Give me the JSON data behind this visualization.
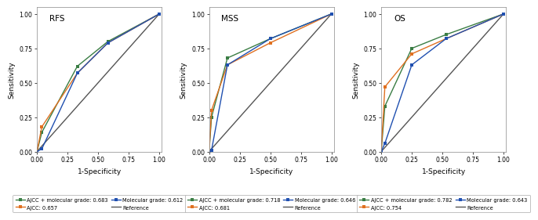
{
  "panels": [
    {
      "title": "RFS",
      "curves": {
        "ajcc_mol": {
          "x": [
            0.0,
            0.04,
            0.33,
            0.58,
            1.0
          ],
          "y": [
            0.0,
            0.14,
            0.62,
            0.8,
            1.0
          ],
          "color": "#3a7d44",
          "label": "AJCC + molecular grade: 0.683"
        },
        "ajcc": {
          "x": [
            0.0,
            0.04,
            0.33,
            0.58,
            1.0
          ],
          "y": [
            0.0,
            0.18,
            0.57,
            0.79,
            1.0
          ],
          "color": "#e07020",
          "label": "AJCC: 0.657"
        },
        "mol": {
          "x": [
            0.0,
            0.04,
            0.33,
            0.58,
            1.0
          ],
          "y": [
            0.0,
            0.02,
            0.57,
            0.79,
            1.0
          ],
          "color": "#2050b0",
          "label": "Molecular grade: 0.612"
        }
      }
    },
    {
      "title": "MSS",
      "curves": {
        "ajcc_mol": {
          "x": [
            0.0,
            0.02,
            0.15,
            0.5,
            1.0
          ],
          "y": [
            0.0,
            0.25,
            0.68,
            0.82,
            1.0
          ],
          "color": "#3a7d44",
          "label": "AJCC + molecular grade: 0.718"
        },
        "ajcc": {
          "x": [
            0.0,
            0.02,
            0.15,
            0.5,
            1.0
          ],
          "y": [
            0.0,
            0.3,
            0.63,
            0.79,
            1.0
          ],
          "color": "#e07020",
          "label": "AJCC: 0.681"
        },
        "mol": {
          "x": [
            0.0,
            0.02,
            0.15,
            0.5,
            1.0
          ],
          "y": [
            0.0,
            0.01,
            0.63,
            0.82,
            1.0
          ],
          "color": "#2050b0",
          "label": "Molecular grade: 0.646"
        }
      }
    },
    {
      "title": "OS",
      "curves": {
        "ajcc_mol": {
          "x": [
            0.0,
            0.03,
            0.25,
            0.53,
            1.0
          ],
          "y": [
            0.0,
            0.33,
            0.75,
            0.85,
            1.0
          ],
          "color": "#3a7d44",
          "label": "AJCC + molecular grade: 0.782"
        },
        "ajcc": {
          "x": [
            0.0,
            0.03,
            0.25,
            0.53,
            1.0
          ],
          "y": [
            0.0,
            0.47,
            0.71,
            0.82,
            1.0
          ],
          "color": "#e07020",
          "label": "AJCC: 0.754"
        },
        "mol": {
          "x": [
            0.0,
            0.03,
            0.25,
            0.53,
            1.0
          ],
          "y": [
            0.0,
            0.06,
            0.63,
            0.82,
            1.0
          ],
          "color": "#2050b0",
          "label": "Molecular grade: 0.643"
        }
      }
    }
  ],
  "ref_color": "#555555",
  "xlabel": "1-Specificity",
  "ylabel": "Sensitivity",
  "xticks": [
    0.0,
    0.25,
    0.5,
    0.75,
    1.0
  ],
  "yticks": [
    0.0,
    0.25,
    0.5,
    0.75,
    1.0
  ],
  "x_tick_labels": [
    "0.00",
    "0.25",
    "0.50",
    "0.75",
    "1.00"
  ],
  "y_tick_labels": [
    "0.00",
    "0.25",
    "0.50",
    "0.75",
    "1.00"
  ],
  "marker": "s",
  "markersize": 3.5,
  "linewidth": 1.0
}
